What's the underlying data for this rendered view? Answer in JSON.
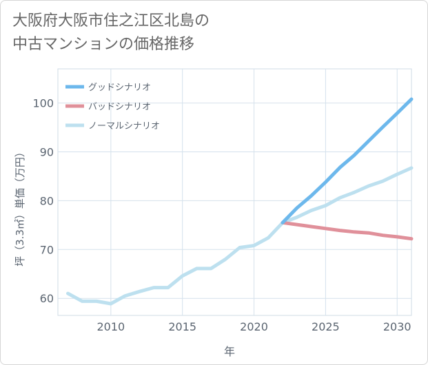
{
  "title": "大阪府大阪市住之江区北島の\n中古マンションの価格推移",
  "chart_data": {
    "type": "line",
    "xlabel": "年",
    "ylabel": "坪（3.3㎡）単価（万円）",
    "xlim": [
      2006.3,
      2031
    ],
    "ylim": [
      56.5,
      107
    ],
    "xticks": [
      2010,
      2015,
      2020,
      2025,
      2030
    ],
    "yticks": [
      60,
      70,
      80,
      90,
      100
    ],
    "grid": true,
    "legend_position": "top-left",
    "series": [
      {
        "name": "グッドシナリオ",
        "color": "#6db8ec",
        "x": [
          2022,
          2023,
          2024,
          2025,
          2026,
          2027,
          2028,
          2029,
          2030,
          2031
        ],
        "y": [
          75.5,
          78.5,
          81.0,
          83.8,
          86.8,
          89.3,
          92.2,
          95.1,
          97.9,
          100.8
        ]
      },
      {
        "name": "バッドシナリオ",
        "color": "#e0909a",
        "x": [
          2022,
          2023,
          2024,
          2025,
          2026,
          2027,
          2028,
          2029,
          2030,
          2031
        ],
        "y": [
          75.5,
          75.1,
          74.7,
          74.3,
          73.9,
          73.6,
          73.4,
          72.9,
          72.6,
          72.2
        ]
      },
      {
        "name": "ノーマルシナリオ",
        "color": "#bde0ef",
        "x": [
          2007,
          2008,
          2009,
          2010,
          2011,
          2012,
          2013,
          2014,
          2015,
          2016,
          2017,
          2018,
          2019,
          2020,
          2021,
          2022,
          2023,
          2024,
          2025,
          2026,
          2027,
          2028,
          2029,
          2030,
          2031
        ],
        "y": [
          61.0,
          59.4,
          59.4,
          58.9,
          60.5,
          61.4,
          62.2,
          62.2,
          64.6,
          66.1,
          66.1,
          68.0,
          70.4,
          70.8,
          72.4,
          75.5,
          76.6,
          78.0,
          79.0,
          80.6,
          81.7,
          83.0,
          84.0,
          85.4,
          86.7
        ]
      }
    ]
  }
}
